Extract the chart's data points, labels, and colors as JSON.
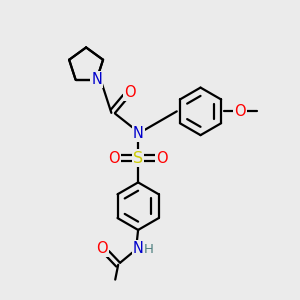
{
  "bg_color": "#ebebeb",
  "atom_colors": {
    "C": "#000000",
    "N": "#0000cc",
    "O": "#ff0000",
    "S": "#cccc00",
    "H": "#508080"
  },
  "bond_color": "#000000",
  "line_width": 1.6,
  "font_size": 10.5,
  "fig_size": [
    3.0,
    3.0
  ],
  "dpi": 100
}
